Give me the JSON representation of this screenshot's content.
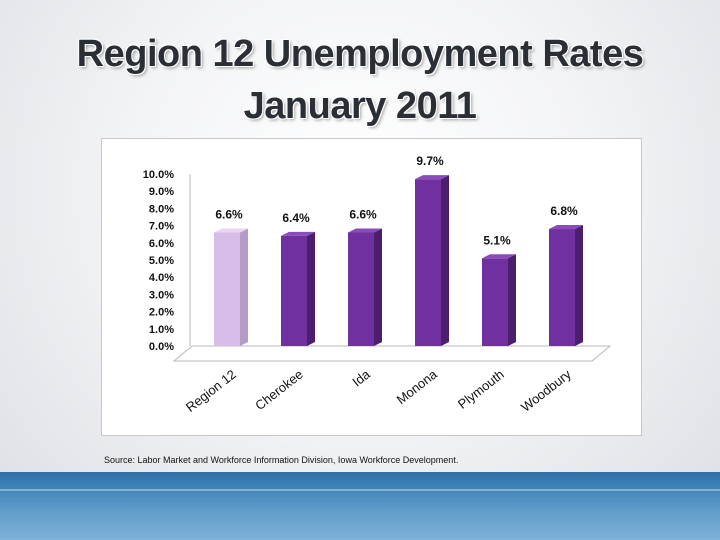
{
  "title": {
    "line1": "Region 12 Unemployment Rates",
    "line2": "January 2011"
  },
  "source": "Source:  Labor Market and Workforce Information Division, Iowa Workforce Development.",
  "colors": {
    "highlight_bar": "#d7bde8",
    "bar": "#7030a0",
    "footer": "#3a7fb6"
  },
  "chart_data": {
    "type": "bar",
    "title": "",
    "xlabel": "",
    "ylabel": "",
    "categories": [
      "Region 12",
      "Cherokee",
      "Ida",
      "Monona",
      "Plymouth",
      "Woodbury"
    ],
    "values": [
      6.6,
      6.4,
      6.6,
      9.7,
      5.1,
      6.8
    ],
    "data_labels": [
      "6.6%",
      "6.4%",
      "6.6%",
      "9.7%",
      "5.1%",
      "6.8%"
    ],
    "ylim": [
      0,
      10
    ],
    "yticks": [
      "0.0%",
      "1.0%",
      "2.0%",
      "3.0%",
      "4.0%",
      "5.0%",
      "6.0%",
      "7.0%",
      "8.0%",
      "9.0%",
      "10.0%"
    ],
    "grid": false,
    "legend": "none",
    "style": "3d-column"
  }
}
